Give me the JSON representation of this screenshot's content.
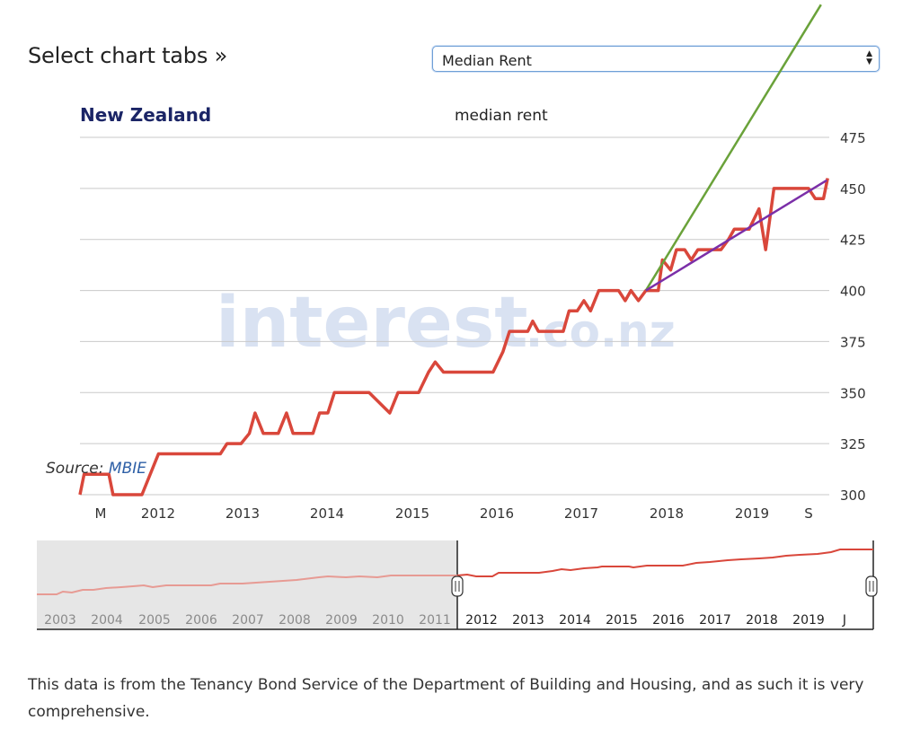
{
  "header": {
    "tabs_label": "Select chart tabs »",
    "selected_option": "Median Rent"
  },
  "chart": {
    "region": "New Zealand",
    "subtitle": "median rent",
    "watermark_main": "interest",
    "watermark_suffix": ".co.nz",
    "source_label": "Source:",
    "source_link": "MBIE"
  },
  "footnote": "This data is from the Tenancy Bond Service of the Department of Building and Housing, and as such it is very comprehensive.",
  "colors": {
    "series": "#d9473b",
    "trend_green": "#6aa23a",
    "trend_purple": "#7b2fa8",
    "title_navy": "#1b2566",
    "link": "#2d5fa6"
  },
  "chart_data": {
    "type": "line",
    "y_ticks": [
      "475",
      "450",
      "425",
      "400",
      "375",
      "350",
      "325",
      "300"
    ],
    "x_ticks": [
      "M",
      "2012",
      "2013",
      "2014",
      "2015",
      "2016",
      "2017",
      "2018",
      "2019",
      "S"
    ],
    "ylim": [
      300,
      475
    ],
    "grid": true,
    "series": [
      {
        "values": [
          [
            2011.2,
            300
          ],
          [
            2011.25,
            310
          ],
          [
            2011.55,
            310
          ],
          [
            2011.6,
            300
          ],
          [
            2011.95,
            300
          ],
          [
            2012.1,
            315
          ],
          [
            2012.15,
            320
          ],
          [
            2012.5,
            320
          ],
          [
            2012.9,
            320
          ],
          [
            2012.98,
            325
          ],
          [
            2013.15,
            325
          ],
          [
            2013.25,
            330
          ],
          [
            2013.32,
            340
          ],
          [
            2013.42,
            330
          ],
          [
            2013.6,
            330
          ],
          [
            2013.7,
            340
          ],
          [
            2013.78,
            330
          ],
          [
            2014.02,
            330
          ],
          [
            2014.1,
            340
          ],
          [
            2014.2,
            340
          ],
          [
            2014.28,
            350
          ],
          [
            2014.7,
            350
          ],
          [
            2014.95,
            340
          ],
          [
            2015.05,
            350
          ],
          [
            2015.3,
            350
          ],
          [
            2015.42,
            360
          ],
          [
            2015.5,
            365
          ],
          [
            2015.6,
            360
          ],
          [
            2016.2,
            360
          ],
          [
            2016.32,
            370
          ],
          [
            2016.4,
            380
          ],
          [
            2016.62,
            380
          ],
          [
            2016.68,
            385
          ],
          [
            2016.75,
            380
          ],
          [
            2017.05,
            380
          ],
          [
            2017.12,
            390
          ],
          [
            2017.22,
            390
          ],
          [
            2017.3,
            395
          ],
          [
            2017.38,
            390
          ],
          [
            2017.48,
            400
          ],
          [
            2017.72,
            400
          ],
          [
            2017.8,
            395
          ],
          [
            2017.87,
            400
          ],
          [
            2017.96,
            395
          ],
          [
            2018.05,
            400
          ],
          [
            2018.2,
            400
          ],
          [
            2018.25,
            415
          ],
          [
            2018.35,
            410
          ],
          [
            2018.42,
            420
          ],
          [
            2018.52,
            420
          ],
          [
            2018.6,
            415
          ],
          [
            2018.68,
            420
          ],
          [
            2018.96,
            420
          ],
          [
            2019.05,
            425
          ],
          [
            2019.12,
            430
          ],
          [
            2019.3,
            430
          ],
          [
            2019.42,
            440
          ],
          [
            2019.5,
            420
          ],
          [
            2019.6,
            450
          ],
          [
            2020.02,
            450
          ],
          [
            2020.1,
            445
          ],
          [
            2020.2,
            445
          ],
          [
            2020.25,
            455
          ]
        ]
      }
    ],
    "trendlines": [
      {
        "color": "green",
        "from": [
          2018.05,
          400
        ],
        "to": [
          2020.17,
          540
        ]
      },
      {
        "color": "purple",
        "from": [
          2018.05,
          400
        ],
        "to": [
          2020.24,
          454
        ]
      }
    ],
    "navigator": {
      "x_ticks": [
        "2003",
        "2004",
        "2005",
        "2006",
        "2007",
        "2008",
        "2009",
        "2010",
        "2011",
        "2012",
        "2013",
        "2014",
        "2015",
        "2016",
        "2017",
        "2018",
        "2019",
        "J"
      ],
      "selected_range": [
        "2011",
        "2020"
      ]
    }
  }
}
